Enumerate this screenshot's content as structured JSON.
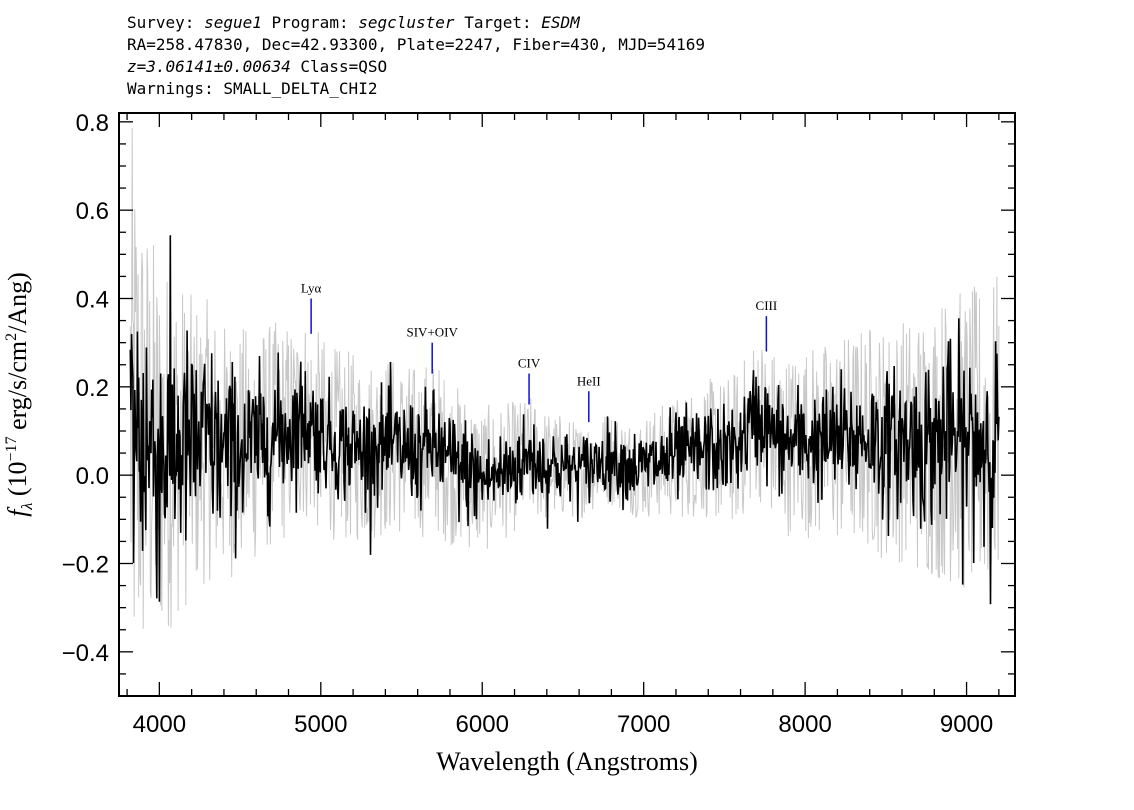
{
  "header": {
    "survey_key": "Survey:",
    "survey_value": "segue1",
    "program_key": "Program:",
    "program_value": "segcluster",
    "target_key": "Target:",
    "target_value": "ESDM",
    "line2": "RA=258.47830, Dec=42.93300, Plate=2247, Fiber=430, MJD=54169",
    "redshift": "z=3.06141±0.00634",
    "class": "Class=QSO",
    "warnings": "Warnings: SMALL_DELTA_CHI2"
  },
  "chart_data": {
    "type": "line",
    "xlabel": "Wavelength (Angstroms)",
    "ylabel_prefix": "f",
    "ylabel_sub": "λ",
    "ylabel_mid": " (10",
    "ylabel_exp": "−17",
    "ylabel_rest": " erg/s/cm",
    "ylabel_exp2": "2",
    "ylabel_tail": "/Ang)",
    "xlim": [
      3750,
      9300
    ],
    "ylim": [
      -0.5,
      0.82
    ],
    "x_ticks": [
      4000,
      5000,
      6000,
      7000,
      8000,
      9000
    ],
    "x_tick_labels": [
      "4000",
      "5000",
      "6000",
      "7000",
      "8000",
      "9000"
    ],
    "y_ticks": [
      -0.4,
      -0.2,
      0.0,
      0.2,
      0.4,
      0.6,
      0.8
    ],
    "y_tick_labels": [
      "−0.4",
      "−0.2",
      "0.0",
      "0.2",
      "0.4",
      "0.6",
      "0.8"
    ],
    "x_minor_step": 200,
    "y_minor_step": 0.05,
    "series": [
      {
        "color": "#000000",
        "role": "flux",
        "x": [
          3820,
          3900,
          4000,
          4100,
          4200,
          4300,
          4400,
          4500,
          4600,
          4700,
          4800,
          4900,
          5000,
          5100,
          5200,
          5300,
          5400,
          5500,
          5600,
          5700,
          5800,
          5900,
          6000,
          6100,
          6200,
          6300,
          6400,
          6500,
          6600,
          6700,
          6800,
          6900,
          7000,
          7100,
          7200,
          7300,
          7400,
          7500,
          7600,
          7700,
          7800,
          7900,
          8000,
          8100,
          8200,
          8300,
          8400,
          8500,
          8600,
          8700,
          8800,
          8900,
          9000,
          9100,
          9200
        ],
        "y": [
          0.12,
          0.08,
          0.05,
          0.07,
          0.06,
          0.08,
          0.05,
          0.06,
          0.07,
          0.09,
          0.1,
          0.13,
          0.09,
          0.07,
          0.06,
          0.06,
          0.07,
          0.06,
          0.05,
          0.07,
          0.03,
          0.01,
          -0.01,
          0.0,
          0.02,
          0.04,
          0.02,
          0.02,
          0.01,
          0.03,
          0.04,
          0.02,
          0.02,
          0.03,
          0.04,
          0.05,
          0.06,
          0.05,
          0.07,
          0.14,
          0.09,
          0.07,
          0.08,
          0.07,
          0.08,
          0.08,
          0.09,
          0.07,
          0.08,
          0.07,
          0.08,
          0.09,
          0.07,
          0.08,
          0.09
        ],
        "noise": [
          0.2,
          0.18,
          0.16,
          0.14,
          0.12,
          0.11,
          0.1,
          0.09,
          0.08,
          0.08,
          0.07,
          0.07,
          0.06,
          0.06,
          0.06,
          0.06,
          0.06,
          0.06,
          0.06,
          0.06,
          0.06,
          0.06,
          0.05,
          0.05,
          0.05,
          0.05,
          0.05,
          0.04,
          0.04,
          0.04,
          0.04,
          0.04,
          0.04,
          0.05,
          0.05,
          0.05,
          0.05,
          0.05,
          0.05,
          0.06,
          0.06,
          0.06,
          0.06,
          0.06,
          0.07,
          0.07,
          0.07,
          0.08,
          0.08,
          0.09,
          0.1,
          0.1,
          0.11,
          0.12,
          0.12
        ]
      },
      {
        "color": "#c8c8c8",
        "role": "uncertainty",
        "x": [
          3820,
          3900,
          4000,
          4100,
          4200,
          4300,
          4400,
          4500,
          4600,
          4700,
          4800,
          4900,
          5000,
          5100,
          5200,
          5300,
          5400,
          5500,
          5600,
          5700,
          5800,
          5900,
          6000,
          6100,
          6200,
          6300,
          6400,
          6500,
          6600,
          6700,
          6800,
          6900,
          7000,
          7100,
          7200,
          7300,
          7400,
          7500,
          7600,
          7700,
          7800,
          7900,
          8000,
          8100,
          8200,
          8300,
          8400,
          8500,
          8600,
          8700,
          8800,
          8900,
          9000,
          9100,
          9200
        ],
        "y": [
          0.7,
          0.55,
          0.45,
          0.4,
          0.35,
          0.32,
          0.3,
          0.28,
          0.27,
          0.26,
          0.25,
          0.24,
          0.23,
          0.22,
          0.22,
          0.21,
          0.21,
          0.2,
          0.2,
          0.2,
          0.19,
          0.18,
          0.17,
          0.16,
          0.15,
          0.14,
          0.13,
          0.12,
          0.11,
          0.11,
          0.11,
          0.11,
          0.12,
          0.13,
          0.14,
          0.15,
          0.16,
          0.17,
          0.18,
          0.19,
          0.2,
          0.21,
          0.22,
          0.23,
          0.24,
          0.25,
          0.26,
          0.27,
          0.28,
          0.3,
          0.32,
          0.34,
          0.35,
          0.36,
          0.37
        ]
      }
    ],
    "line_labels": [
      {
        "label": "Lyα",
        "x": 4940,
        "y_bottom": 0.32,
        "y_top": 0.4
      },
      {
        "label": "SIV+OIV",
        "x": 5690,
        "y_bottom": 0.23,
        "y_top": 0.3
      },
      {
        "label": "CIV",
        "x": 6290,
        "y_bottom": 0.16,
        "y_top": 0.23
      },
      {
        "label": "HeII",
        "x": 6660,
        "y_bottom": 0.12,
        "y_top": 0.19
      },
      {
        "label": "CIII",
        "x": 7760,
        "y_bottom": 0.28,
        "y_top": 0.36
      }
    ],
    "grid": false,
    "line_color": "#1010d0"
  }
}
